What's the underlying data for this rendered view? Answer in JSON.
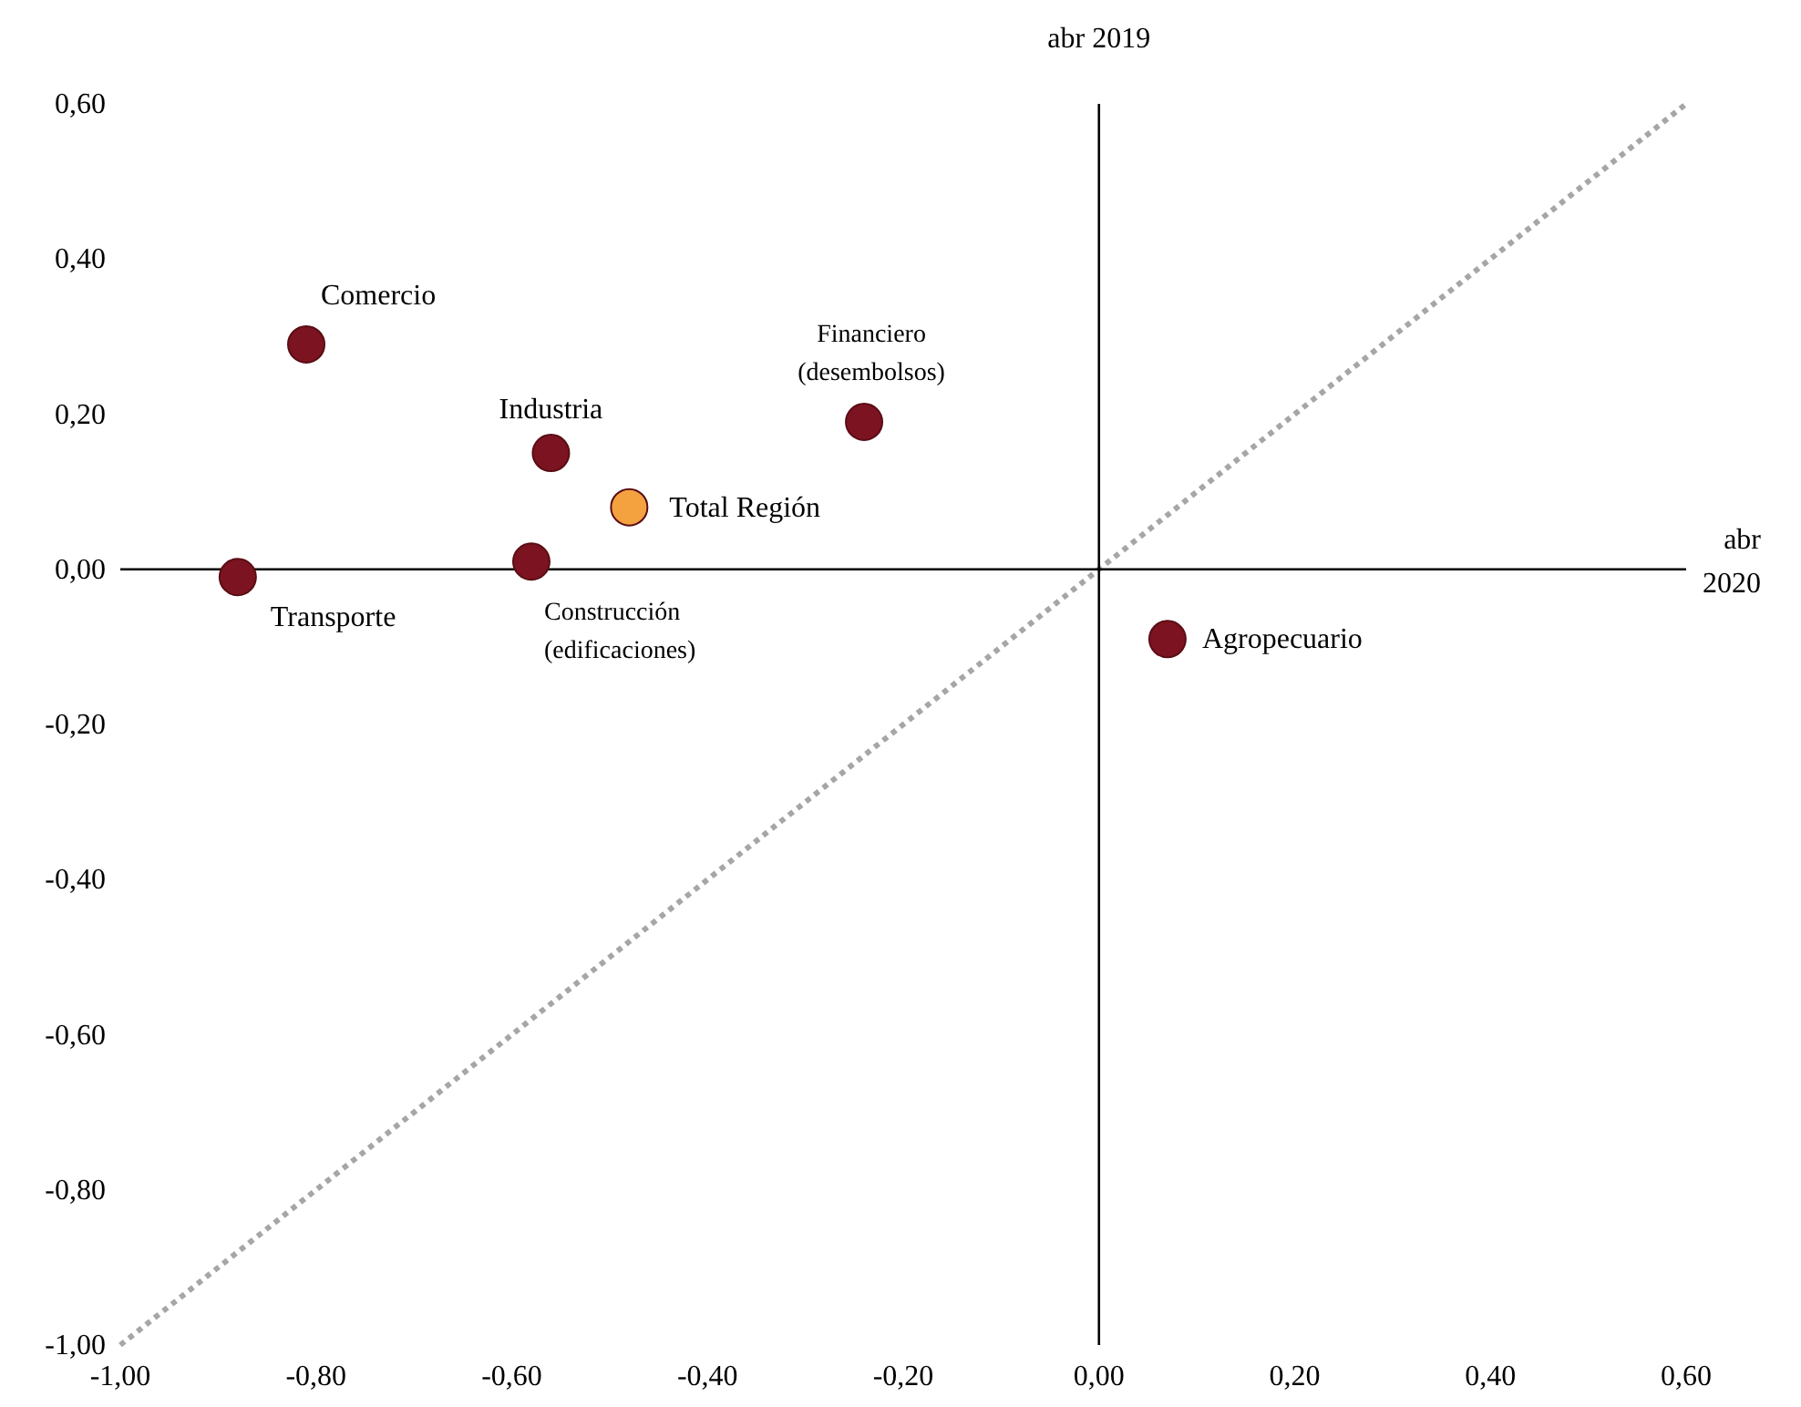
{
  "chart_data": {
    "type": "scatter",
    "xlabel": "abr\n2020",
    "ylabel": "abr 2019",
    "xlim": [
      -1,
      0.6
    ],
    "ylim": [
      -1,
      0.6
    ],
    "xticks": [
      {
        "value": -1,
        "label": "-1,00"
      },
      {
        "value": -0.8,
        "label": "-0,80"
      },
      {
        "value": -0.6,
        "label": "-0,60"
      },
      {
        "value": -0.4,
        "label": "-0,40"
      },
      {
        "value": -0.2,
        "label": "-0,20"
      },
      {
        "value": 0,
        "label": "0,00"
      },
      {
        "value": 0.2,
        "label": "0,20"
      },
      {
        "value": 0.4,
        "label": "0,40"
      },
      {
        "value": 0.6,
        "label": "0,60"
      }
    ],
    "yticks": [
      {
        "value": -1,
        "label": "-1,00"
      },
      {
        "value": -0.8,
        "label": "-0,80"
      },
      {
        "value": -0.6,
        "label": "-0,60"
      },
      {
        "value": -0.4,
        "label": "-0,40"
      },
      {
        "value": -0.2,
        "label": "-0,20"
      },
      {
        "value": 0,
        "label": "0,00"
      },
      {
        "value": 0.2,
        "label": "0,20"
      },
      {
        "value": 0.4,
        "label": "0,40"
      },
      {
        "value": 0.6,
        "label": "0,60"
      }
    ],
    "series": [
      {
        "marker": "circle",
        "x": [
          -0.81,
          -0.56,
          -0.24,
          -0.48,
          -0.88,
          -0.58,
          0.07
        ],
        "values": [
          0.29,
          0.15,
          0.19,
          0.08,
          -0.01,
          0.01,
          -0.09
        ],
        "colors": [
          "#7b1420",
          "#7b1420",
          "#7b1420",
          "#f4a240",
          "#7b1420",
          "#7b1420",
          "#7b1420"
        ]
      },
      {
        "type": "line",
        "x": [
          -1,
          0.6
        ],
        "values": [
          -1,
          0.6
        ],
        "color": "#a6a6a6",
        "line_style": "dotted"
      }
    ],
    "annotations": [
      {
        "text": "Comercio",
        "x": -0.81,
        "y": 0.29
      },
      {
        "text": "Industria",
        "x": -0.56,
        "y": 0.15
      },
      {
        "text": "Financiero\n(desembolsos)",
        "x": -0.24,
        "y": 0.19
      },
      {
        "text": "Total Región",
        "x": -0.48,
        "y": 0.08
      },
      {
        "text": "Transporte",
        "x": -0.88,
        "y": -0.01
      },
      {
        "text": "Construcción\n(edificaciones)",
        "x": -0.58,
        "y": 0.01
      },
      {
        "text": "Agropecuario",
        "x": 0.07,
        "y": -0.09
      }
    ]
  }
}
